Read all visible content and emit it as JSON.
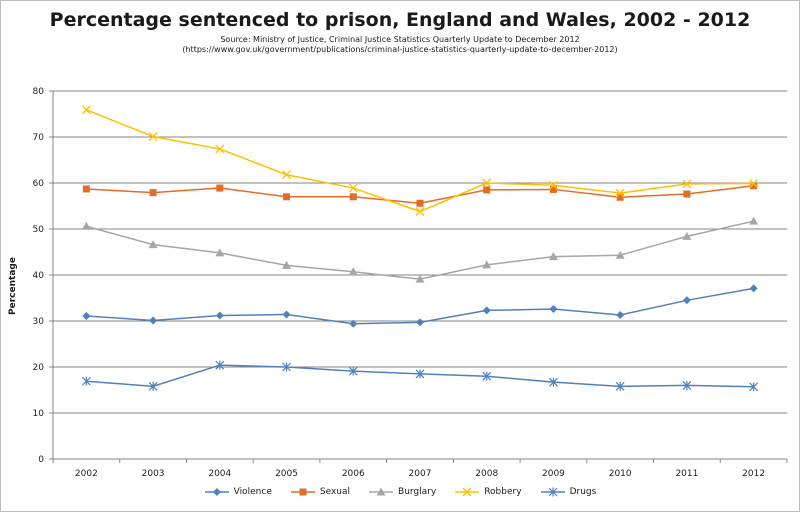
{
  "chart_data": {
    "type": "line",
    "title": "Percentage sentenced to prison, England and Wales, 2002 - 2012",
    "subtitle_lines": [
      "Source: Ministry of Justice, Criminal Justice Statistics Quarterly Update to December 2012",
      "(https://www.gov.uk/government/publications/criminal-justice-statistics-quarterly-update-to-december-2012)"
    ],
    "xlabel": "",
    "ylabel": "Percentage",
    "ylim": [
      0,
      80
    ],
    "yticks": [
      "0",
      "10",
      "20",
      "30",
      "40",
      "50",
      "60",
      "70",
      "80"
    ],
    "grid": true,
    "legend_position": "bottom",
    "categories": [
      "2002",
      "2003",
      "2004",
      "2005",
      "2006",
      "2007",
      "2008",
      "2009",
      "2010",
      "2011",
      "2012"
    ],
    "series": [
      {
        "name": "Violence",
        "color": "#4f81bd",
        "marker": "diamond",
        "values": [
          31.1,
          30.1,
          31.2,
          31.4,
          29.4,
          29.7,
          32.3,
          32.6,
          31.3,
          34.5,
          37.1
        ]
      },
      {
        "name": "Sexual",
        "color": "#e46c28",
        "marker": "square",
        "values": [
          58.7,
          57.9,
          58.9,
          57.0,
          57.0,
          55.6,
          58.5,
          58.6,
          56.9,
          57.6,
          59.4
        ]
      },
      {
        "name": "Burglary",
        "color": "#a6a6a6",
        "marker": "triangle",
        "values": [
          50.6,
          46.6,
          44.8,
          42.1,
          40.7,
          39.1,
          42.2,
          44.0,
          44.3,
          48.4,
          51.7
        ]
      },
      {
        "name": "Robbery",
        "color": "#ffc000",
        "marker": "x",
        "values": [
          75.9,
          70.1,
          67.4,
          61.8,
          58.9,
          53.8,
          60.0,
          59.5,
          57.8,
          59.8,
          59.9
        ]
      },
      {
        "name": "Drugs",
        "color": "#4f81bd",
        "marker": "star",
        "values": [
          16.9,
          15.8,
          20.4,
          20.0,
          19.1,
          18.5,
          18.0,
          16.7,
          15.8,
          16.0,
          15.7
        ]
      }
    ]
  }
}
